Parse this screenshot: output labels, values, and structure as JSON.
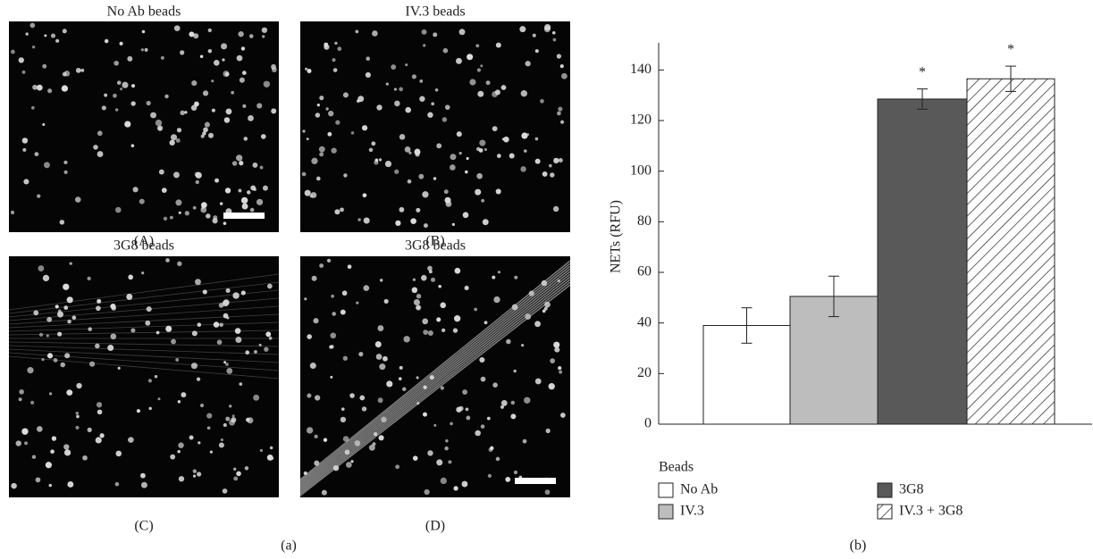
{
  "images": [
    {
      "title": "No Ab beads",
      "label": "(A)"
    },
    {
      "title": "IV.3 beads",
      "label": "(B)"
    },
    {
      "title": "3G8 beads",
      "label": "(C)"
    },
    {
      "title": "3G8 beads",
      "label": "(D)"
    }
  ],
  "panel_labels": [
    "(a)",
    "(b)"
  ],
  "chart_data": {
    "type": "bar",
    "ylabel": "NETs (RFU)",
    "categories": [
      "No Ab",
      "IV.3",
      "3G8",
      "IV.3 + 3G8"
    ],
    "values": [
      39,
      50.5,
      128.5,
      136.5
    ],
    "errors": [
      7,
      8,
      4,
      5
    ],
    "significance": [
      null,
      null,
      "*",
      "*"
    ],
    "colors": [
      "#ffffff",
      "#bdbdbd",
      "#595959",
      "#ffffff"
    ],
    "hatch": [
      false,
      false,
      false,
      true
    ],
    "legend_title": "Beads",
    "ylim": [
      0,
      150
    ],
    "yticks": [
      0,
      20,
      40,
      60,
      80,
      100,
      120,
      140
    ]
  }
}
